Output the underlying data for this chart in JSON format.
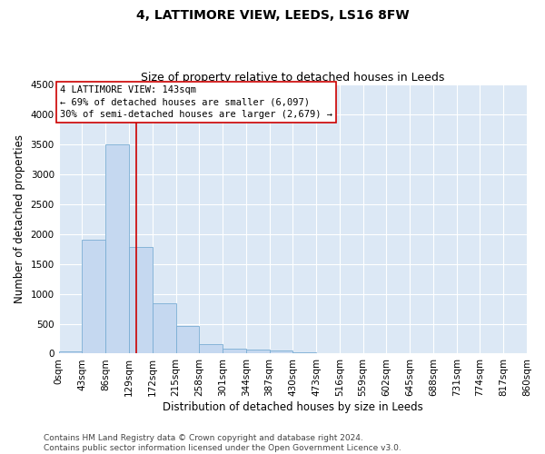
{
  "title": "4, LATTIMORE VIEW, LEEDS, LS16 8FW",
  "subtitle": "Size of property relative to detached houses in Leeds",
  "xlabel": "Distribution of detached houses by size in Leeds",
  "ylabel": "Number of detached properties",
  "bar_values": [
    40,
    1900,
    3500,
    1780,
    840,
    470,
    160,
    90,
    70,
    45,
    25,
    5,
    5,
    3,
    2,
    1,
    1,
    0,
    0,
    0
  ],
  "bin_edges": [
    0,
    43,
    86,
    129,
    172,
    215,
    258,
    301,
    344,
    387,
    430,
    473,
    516,
    559,
    602,
    645,
    688,
    731,
    774,
    817,
    860
  ],
  "bar_color": "#c5d8f0",
  "bar_edge_color": "#7aadd4",
  "vline_x": 143,
  "vline_color": "#cc0000",
  "ylim": [
    0,
    4500
  ],
  "yticks": [
    0,
    500,
    1000,
    1500,
    2000,
    2500,
    3000,
    3500,
    4000,
    4500
  ],
  "annotation_title": "4 LATTIMORE VIEW: 143sqm",
  "annotation_line1": "← 69% of detached houses are smaller (6,097)",
  "annotation_line2": "30% of semi-detached houses are larger (2,679) →",
  "annotation_box_color": "#ffffff",
  "annotation_box_edge_color": "#cc0000",
  "footer_line1": "Contains HM Land Registry data © Crown copyright and database right 2024.",
  "footer_line2": "Contains public sector information licensed under the Open Government Licence v3.0.",
  "bg_color": "#ffffff",
  "plot_bg_color": "#dce8f5",
  "grid_color": "#ffffff",
  "title_fontsize": 10,
  "subtitle_fontsize": 9,
  "axis_label_fontsize": 8.5,
  "tick_fontsize": 7.5,
  "annotation_fontsize": 7.5,
  "footer_fontsize": 6.5
}
